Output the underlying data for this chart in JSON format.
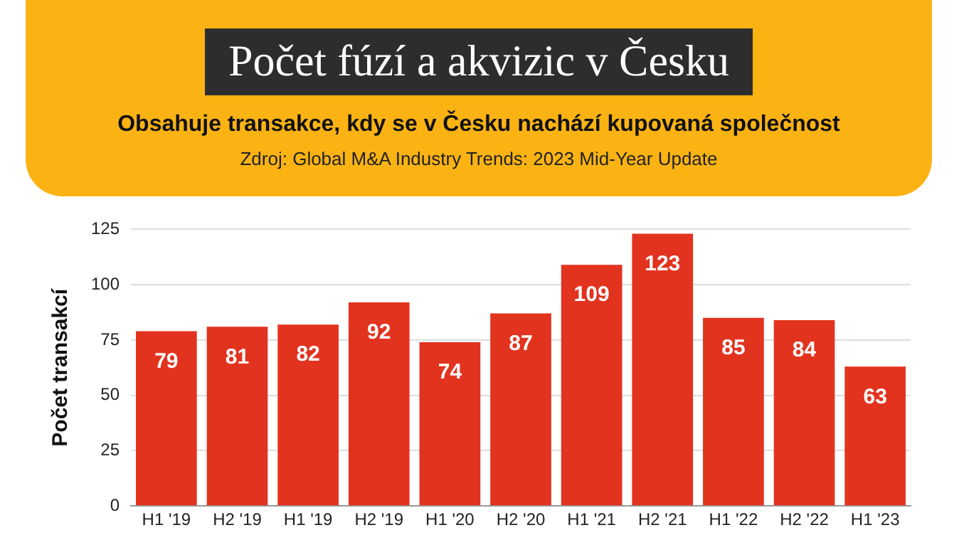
{
  "chart_data": {
    "type": "bar",
    "title": "Počet fúzí a akvizic v Česku",
    "subtitle": "Obsahuje transakce, kdy se v Česku nachází kupovaná společnost",
    "annotations": [
      "Zdroj: Global M&A Industry Trends: 2023 Mid-Year Update"
    ],
    "ylabel": "Počet transakcí",
    "categories": [
      "H1 '19",
      "H2 '19",
      "H1 '19",
      "H2 '19",
      "H1 '20",
      "H2 '20",
      "H1 '21",
      "H2 '21",
      "H1 '22",
      "H2 '22",
      "H1 '23"
    ],
    "values": [
      79,
      81,
      82,
      92,
      74,
      87,
      109,
      123,
      85,
      84,
      63
    ],
    "color": "#e2331f",
    "ylim": [
      0,
      125
    ],
    "yticks": [
      0,
      25,
      50,
      75,
      100,
      125
    ],
    "grid": "y",
    "data_labels": true
  }
}
